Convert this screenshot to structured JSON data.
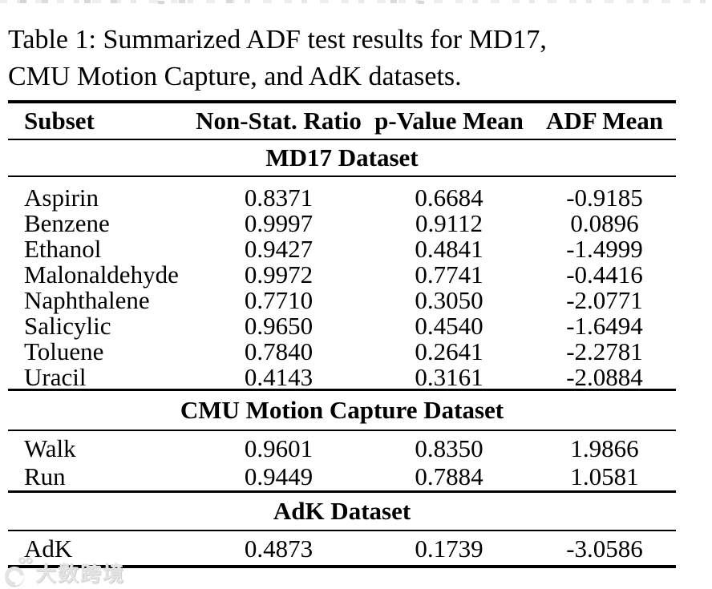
{
  "caption": {
    "line1": "Table 1: Summarized ADF test results for MD17,",
    "line2": "CMU Motion Capture, and AdK datasets."
  },
  "table": {
    "columns": [
      "Subset",
      "Non-Stat. Ratio",
      "p-Value Mean",
      "ADF Mean"
    ],
    "sections": [
      {
        "title": "MD17 Dataset",
        "rows": [
          [
            "Aspirin",
            "0.8371",
            "0.6684",
            "-0.9185"
          ],
          [
            "Benzene",
            "0.9997",
            "0.9112",
            "0.0896"
          ],
          [
            "Ethanol",
            "0.9427",
            "0.4841",
            "-1.4999"
          ],
          [
            "Malonaldehyde",
            "0.9972",
            "0.7741",
            "-0.4416"
          ],
          [
            "Naphthalene",
            "0.7710",
            "0.3050",
            "-2.0771"
          ],
          [
            "Salicylic",
            "0.9650",
            "0.4540",
            "-1.6494"
          ],
          [
            "Toluene",
            "0.7840",
            "0.2641",
            "-2.2781"
          ],
          [
            "Uracil",
            "0.4143",
            "0.3161",
            "-2.0884"
          ]
        ]
      },
      {
        "title": "CMU Motion Capture Dataset",
        "rows": [
          [
            "Walk",
            "0.9601",
            "0.8350",
            "1.9866"
          ],
          [
            "Run",
            "0.9449",
            "0.7884",
            "1.0581"
          ]
        ]
      },
      {
        "title": "AdK Dataset",
        "rows": [
          [
            "AdK",
            "0.4873",
            "0.1739",
            "-3.0586"
          ]
        ]
      }
    ]
  },
  "watermark": {
    "text": "大数跨境"
  },
  "colors": {
    "text": "#000000",
    "background": "#ffffff",
    "rule": "#000000",
    "watermark": "#e3e3e3"
  }
}
